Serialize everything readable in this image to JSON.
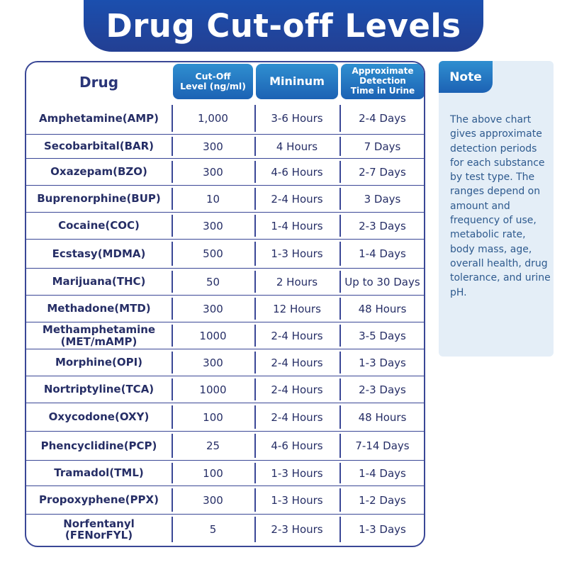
{
  "title": "Drug Cut-off Levels",
  "table": {
    "headers": {
      "drug": "Drug",
      "cutoff_line1": "Cut-Off",
      "cutoff_line2": "Level (ng/ml)",
      "minimum": "Mininum",
      "detection_line1": "Approximate",
      "detection_line2": "Detection",
      "detection_line3": "Time in Urine"
    },
    "rows": [
      {
        "drug": "Amphetamine(AMP)",
        "cutoff": "1,000",
        "minimum": "3-6 Hours",
        "detection": "2-4 Days"
      },
      {
        "drug": "Secobarbital(BAR)",
        "cutoff": "300",
        "minimum": "4 Hours",
        "detection": "7 Days"
      },
      {
        "drug": "Oxazepam(BZO)",
        "cutoff": "300",
        "minimum": "4-6 Hours",
        "detection": "2-7 Days"
      },
      {
        "drug": "Buprenorphine(BUP)",
        "cutoff": "10",
        "minimum": "2-4 Hours",
        "detection": "3 Days"
      },
      {
        "drug": "Cocaine(COC)",
        "cutoff": "300",
        "minimum": "1-4 Hours",
        "detection": "2-3 Days"
      },
      {
        "drug": "Ecstasy(MDMA)",
        "cutoff": "500",
        "minimum": "1-3 Hours",
        "detection": "1-4 Days"
      },
      {
        "drug": "Marijuana(THC)",
        "cutoff": "50",
        "minimum": "2 Hours",
        "detection": "Up to 30 Days"
      },
      {
        "drug": "Methadone(MTD)",
        "cutoff": "300",
        "minimum": "12 Hours",
        "detection": "48 Hours"
      },
      {
        "drug": "Methamphetamine\n(MET/mAMP)",
        "cutoff": "1000",
        "minimum": "2-4 Hours",
        "detection": "3-5 Days"
      },
      {
        "drug": "Morphine(OPI)",
        "cutoff": "300",
        "minimum": "2-4 Hours",
        "detection": "1-3 Days"
      },
      {
        "drug": "Nortriptyline(TCA)",
        "cutoff": "1000",
        "minimum": "2-4 Hours",
        "detection": "2-3 Days"
      },
      {
        "drug": "Oxycodone(OXY)",
        "cutoff": "100",
        "minimum": "2-4 Hours",
        "detection": "48 Hours"
      },
      {
        "drug": "Phencyclidine(PCP)",
        "cutoff": "25",
        "minimum": "4-6 Hours",
        "detection": "7-14 Days"
      },
      {
        "drug": "Tramadol(TML)",
        "cutoff": "100",
        "minimum": "1-3 Hours",
        "detection": "1-4 Days"
      },
      {
        "drug": "Propoxyphene(PPX)",
        "cutoff": "300",
        "minimum": "1-3 Hours",
        "detection": "1-2 Days"
      },
      {
        "drug": "Norfentanyl\n(FENorFYL)",
        "cutoff": "5",
        "minimum": "2-3 Hours",
        "detection": "1-3 Days"
      }
    ]
  },
  "note": {
    "label": "Note",
    "text": "The above chart gives approximate detection periods for each substance by test type. The ranges depend on amount and frequency of use, metabolic rate, body mass, age, overall health, drug tolerance, and urine pH."
  },
  "colors": {
    "banner": "#233f93",
    "accent_blue": "#1c62b4",
    "table_border": "#3a4796",
    "note_bg": "#e4eef7",
    "note_text": "#2e5a8e"
  }
}
